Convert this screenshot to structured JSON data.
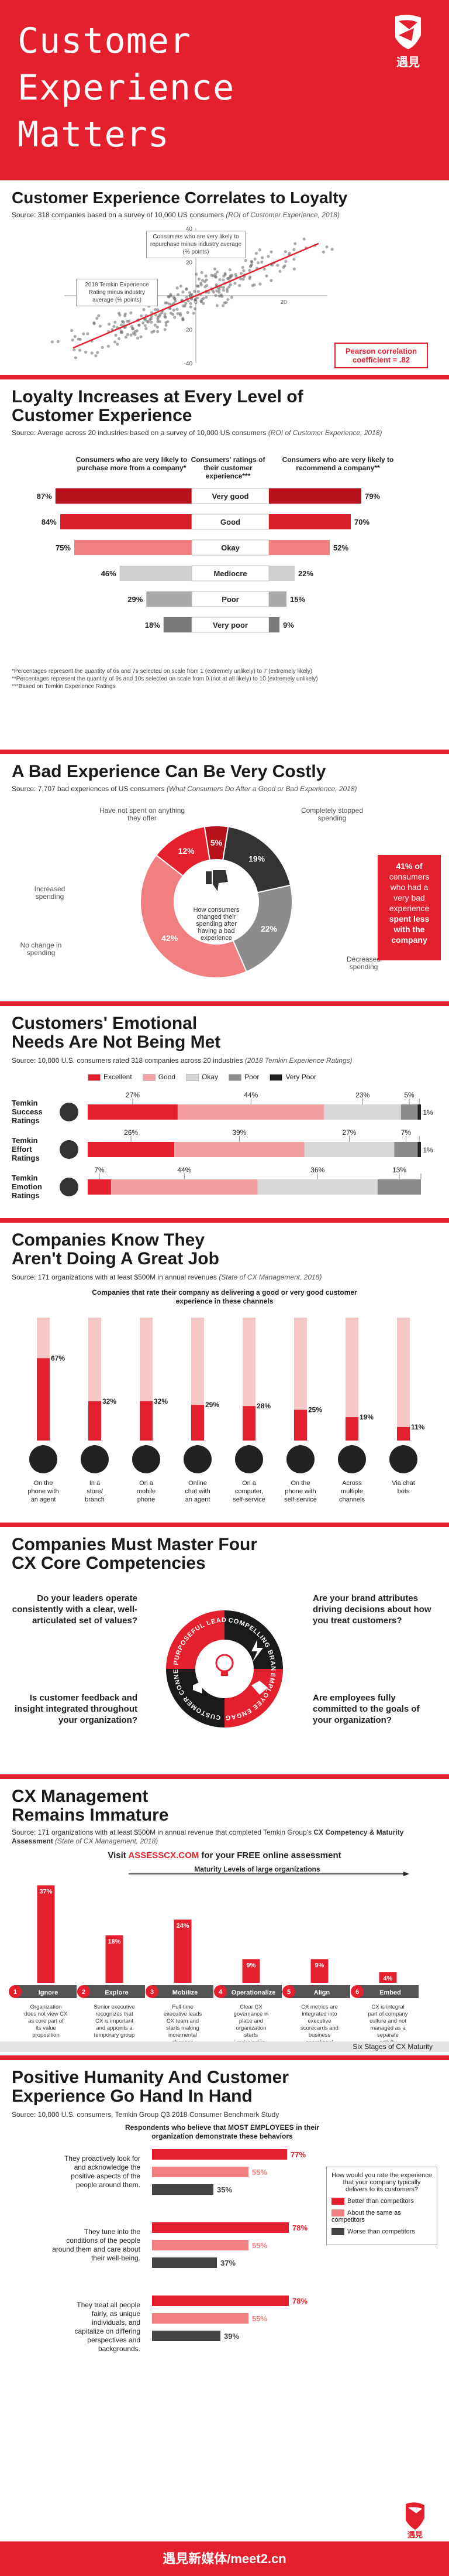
{
  "hero": {
    "title_line1": "Customer",
    "title_line2": "Experience",
    "title_line3": "Matters",
    "logo_text": "遇見"
  },
  "s1": {
    "title": "Customer Experience Correlates to Loyalty",
    "source_lead": "Source: 318 companies based on a survey of 10,000 US consumers ",
    "source_italic": "(ROI of Customer Experience, 2018)",
    "callout_top": "Consumers who are very likely to repurchase minus industry average (% points)",
    "callout_left": "2018 Temkin Experience Rating minus industry average (% points)",
    "pearson_line1": "Pearson correlation",
    "pearson_line2": "coefficient = .82",
    "y_ticks": [
      "40",
      "20",
      "0",
      "-20",
      "-40"
    ],
    "x_ticks": [
      "-20",
      "0",
      "20"
    ]
  },
  "s2": {
    "title_line1": "Loyalty Increases at Every Level of",
    "title_line2": "Customer Experience",
    "source_lead": "Source: Average across 20 industries based on a survey of 10,000 US consumers ",
    "source_italic": "(ROI of Customer Experience, 2018)",
    "col_left": "Consumers who are very likely to purchase more from a company*",
    "col_mid": "Consumers' ratings of their customer experience***",
    "col_right": "Consumers who are very likely to recommend a company**",
    "notes": [
      "*Percentages represent the quantity of 6s and 7s selected on scale from 1 (extremely unlikely) to 7 (extremely likely)",
      "**Percentages represent the quantity of 9s and 10s selected on scale from 0 (not at all likely) to 10 (extremely unlikely)",
      "***Based on Temkin Experience Ratings"
    ]
  },
  "s3": {
    "title": "A Bad Experience Can Be Very Costly",
    "source_lead": "Source: 7,707 bad experiences of US consumers ",
    "source_italic": "(What Consumers Do After a Good or Bad Experience, 2018)",
    "center_text": "How consumers changed their spending after having a bad experience",
    "labels": {
      "not_spent": "Have not spent on anything they offer",
      "stopped": "Completely stopped spending",
      "increased": "Increased spending",
      "no_change": "No change in spending",
      "decreased": "Decreased spending"
    },
    "stat": "41% of consumers who had a very bad experience spent less with the company",
    "stat_a": "41% of",
    "stat_b": "consumers",
    "stat_c": "who had a",
    "stat_d": "very bad",
    "stat_e": "experience",
    "stat_f": "spent less",
    "stat_g": "with the",
    "stat_h": "company"
  },
  "s4": {
    "title_line1": "Customers' Emotional",
    "title_line2": "Needs Are Not Being Met",
    "source_lead": "Source: 10,000 U.S. consumers rated 318 companies across 20 industries ",
    "source_italic": "(2018 Temkin Experience Ratings)",
    "legend": [
      "Excellent",
      "Good",
      "Okay",
      "Poor",
      "Very Poor"
    ],
    "rows": [
      {
        "label_a": "Temkin",
        "label_b": "Success",
        "label_c": "Ratings"
      },
      {
        "label_a": "Temkin",
        "label_b": "Effort",
        "label_c": "Ratings"
      },
      {
        "label_a": "Temkin",
        "label_b": "Emotion",
        "label_c": "Ratings"
      }
    ]
  },
  "s5": {
    "title_line1": "Companies Know They",
    "title_line2": "Aren't Doing A Great Job",
    "source_lead": "Source: 171 organizations with at least $500M in annual revenues ",
    "source_italic": "(State of CX Management, 2018)",
    "chart_title_a": "Companies that rate their company as delivering a good or very good customer",
    "chart_title_b": "experience in these channels"
  },
  "s6": {
    "title_line1": "Companies Must Master Four",
    "title_line2": "CX Core Competencies",
    "q1": "Do your leaders operate consistently with a clear, well-articulated set of values?",
    "q2": "Are your brand attributes driving decisions about how you treat customers?",
    "q3": "Is customer feedback and insight integrated throughout your organization?",
    "q4": "Are employees fully committed to the goals of your organization?",
    "seg1": "PURPOSEFUL LEADERSHIP",
    "seg2": "COMPELLING BRAND VALUES",
    "seg3": "CUSTOMER CONNECTEDNESS",
    "seg4": "EMPLOYEE ENGAGEMENT"
  },
  "s7": {
    "title_line1": "CX Management",
    "title_line2": "Remains Immature",
    "source_lead": "Source: 171 organizations with at least $500M in annual revenue that completed Temkin Group's",
    "source_bold": "CX Competency & Maturity Assessment",
    "source_italic": " (State of CX Management, 2018)",
    "visit_a": "Visit ",
    "visit_link": "ASSESSCX.COM",
    "visit_b": " for your FREE online assessment",
    "maturity_label": "Maturity Levels of large organizations",
    "six_stages": "Six Stages of CX Maturity"
  },
  "s8": {
    "title_line1": "Positive Humanity And Customer",
    "title_line2": "Experience Go Hand In Hand",
    "source_lead": "Source: 10,000 U.S. consumers, Temkin Group Q3 2018 Consumer Benchmark Study",
    "chart_title_a": "Respondents who believe that MOST EMPLOYEES in their",
    "chart_title_b": "organization demonstrate these behaviors",
    "legend_q": "How would you rate the experience that your company typically delivers to its customers?",
    "legend": [
      "Better than competitors",
      "About the same as competitors",
      "Worse than competitors"
    ]
  },
  "footer": {
    "text": "遇見新媒体/meet2.cn",
    "logo_text": "遇見"
  },
  "colors": {
    "accent": "#e4202e",
    "dark_red": "#b5121b",
    "pink": "#f08080",
    "gray": "#888888",
    "dark": "#222222"
  },
  "chart_data": [
    {
      "type": "scatter",
      "title": "Customer Experience Correlates to Loyalty",
      "xlabel": "2018 Temkin Experience Rating minus industry average (% points)",
      "ylabel": "Consumers who are very likely to repurchase minus industry average (% points)",
      "xlim": [
        -30,
        30
      ],
      "ylim": [
        -40,
        40
      ],
      "correlation": 0.82
    },
    {
      "type": "bar",
      "title": "Loyalty Increases at Every Level of Customer Experience",
      "categories": [
        "Very good",
        "Good",
        "Okay",
        "Mediocre",
        "Poor",
        "Very poor"
      ],
      "series": [
        {
          "name": "Consumers who are very likely to purchase more from a company*",
          "values": [
            87,
            84,
            75,
            46,
            29,
            18
          ]
        },
        {
          "name": "Consumers who are very likely to recommend a company**",
          "values": [
            79,
            70,
            52,
            22,
            15,
            9
          ]
        }
      ],
      "unit": "%"
    },
    {
      "type": "pie",
      "title": "A Bad Experience Can Be Very Costly",
      "categories": [
        "Have not spent on anything they offer",
        "Completely stopped spending",
        "Decreased spending",
        "No change in spending",
        "Increased spending"
      ],
      "values": [
        5,
        19,
        22,
        42,
        12
      ],
      "unit": "%"
    },
    {
      "type": "bar",
      "title": "Customers' Emotional Needs Are Not Being Met",
      "stacked": true,
      "categories": [
        "Temkin Success Ratings",
        "Temkin Effort Ratings",
        "Temkin Emotion Ratings"
      ],
      "series": [
        {
          "name": "Excellent",
          "values": [
            27,
            26,
            7
          ]
        },
        {
          "name": "Good",
          "values": [
            44,
            39,
            44
          ]
        },
        {
          "name": "Okay",
          "values": [
            23,
            27,
            36
          ]
        },
        {
          "name": "Poor",
          "values": [
            5,
            7,
            13
          ]
        },
        {
          "name": "Very Poor",
          "values": [
            1,
            1,
            0
          ]
        }
      ],
      "unit": "%"
    },
    {
      "type": "bar",
      "title": "Companies that rate their company as delivering a good or very good customer experience in these channels",
      "categories": [
        "On the phone with an agent",
        "In a store/ branch",
        "On a mobile phone",
        "Online chat with an agent",
        "On a computer, self-service",
        "On the phone with self-service",
        "Across multiple channels",
        "Via chat bots"
      ],
      "values": [
        67,
        32,
        32,
        29,
        28,
        25,
        19,
        11
      ],
      "unit": "%",
      "ylim": [
        0,
        100
      ]
    },
    {
      "type": "bar",
      "title": "Maturity Levels of large organizations",
      "categories": [
        "Ignore",
        "Explore",
        "Mobilize",
        "Operationalize",
        "Align",
        "Embed"
      ],
      "stage_numbers": [
        "1",
        "2",
        "3",
        "4",
        "5",
        "6"
      ],
      "values": [
        37,
        18,
        24,
        9,
        9,
        4
      ],
      "descriptions": [
        "Organization does not view CX as core part of its value proposition",
        "Senior executive recognizes that CX is important and appoints a temporary group",
        "Full-time executive leads CX team and starts making incremental changes",
        "Clear CX governance in place and organization starts redesigning cross-functional processes",
        "CX metrics are integrated into executive scorecards and business operational reviews",
        "CX is integral part of company culture and not managed as a separate activity"
      ],
      "unit": "%"
    },
    {
      "type": "bar",
      "title": "Respondents who believe that MOST EMPLOYEES in their organization demonstrate these behaviors",
      "categories": [
        "They proactively look for and acknowledge the positive aspects of the people around them.",
        "They tune into the conditions of the people around them and care about their well-being.",
        "They treat all people fairly, as unique individuals, and capitalize on differing perspectives and backgrounds."
      ],
      "series": [
        {
          "name": "Better than competitors",
          "values": [
            77,
            78,
            78
          ]
        },
        {
          "name": "About the same as competitors",
          "values": [
            55,
            55,
            55
          ]
        },
        {
          "name": "Worse than competitors",
          "values": [
            35,
            37,
            39
          ]
        }
      ],
      "unit": "%"
    }
  ]
}
